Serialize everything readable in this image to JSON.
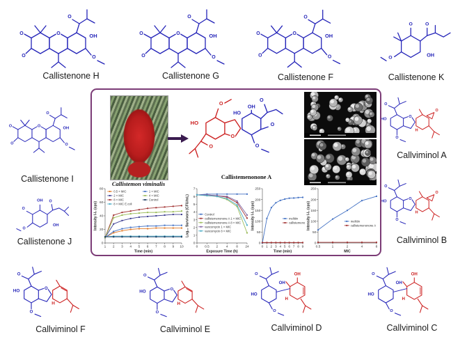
{
  "figure": {
    "box_border_color": "#7b3b76",
    "arrow_color": "#3a1b4f",
    "structure_colors": {
      "blue": "#2323b8",
      "red": "#cc1f1f"
    },
    "atom_labels": {
      "O": "O",
      "OH": "OH",
      "HO": "HO",
      "H": "H"
    },
    "compounds": [
      {
        "label": "Callistenone H",
        "type": "xanthene"
      },
      {
        "label": "Callistenone G",
        "type": "xanthene"
      },
      {
        "label": "Callistenone F",
        "type": "xanthene"
      },
      {
        "label": "Callistenone K",
        "type": "monoK"
      },
      {
        "label": "Callistenone I",
        "type": "xanthene"
      },
      {
        "label": "Callviminol A",
        "type": "benzofuranEpox"
      },
      {
        "label": "Callistenone J",
        "type": "monoJ"
      },
      {
        "label": "Callviminol B",
        "type": "benzofuranEpox"
      },
      {
        "label": "Callviminol F",
        "type": "benzofuranEne"
      },
      {
        "label": "Callviminol E",
        "type": "benzofuranEne"
      },
      {
        "label": "Callviminol D",
        "type": "biphenyl"
      },
      {
        "label": "Callviminol C",
        "type": "biphenyl"
      }
    ],
    "center": {
      "plant_label": "Callistemon viminalis",
      "product_label": "Callistemenonone A"
    }
  },
  "chart_data": [
    {
      "type": "line",
      "xlabel": "Time (min)",
      "ylabel": "Intensity I-I₀ (cps)",
      "x_ticks": [
        "1",
        "2",
        "3",
        "4",
        "5",
        "6",
        "7",
        "8",
        "9",
        "10"
      ],
      "yticks": [
        0,
        20,
        40,
        60,
        80
      ],
      "ylim": [
        0,
        80
      ],
      "legend": {
        "cols": 2,
        "x": 0.03,
        "y": 0.0,
        "rows": 4
      },
      "series": [
        {
          "name": "0.5 × MIC",
          "color": "#e07b2a",
          "values": [
            8,
            15,
            18,
            20,
            21,
            21,
            22,
            22,
            22,
            22
          ]
        },
        {
          "name": "2 × MIC",
          "color": "#3f3f91",
          "values": [
            8,
            28,
            33,
            36,
            38,
            39,
            40,
            41,
            42,
            42
          ]
        },
        {
          "name": "8 × MIC",
          "color": "#a33535",
          "values": [
            8,
            41,
            45,
            47,
            49,
            51,
            52,
            53,
            54,
            55
          ]
        },
        {
          "name": "8 × MIC E.coli",
          "color": "#4bacc6",
          "values": [
            9,
            10,
            10,
            10,
            10,
            10,
            10,
            10,
            10,
            10
          ]
        },
        {
          "name": "1 × MIC",
          "color": "#4472c4",
          "values": [
            8,
            17,
            21,
            23,
            24,
            25,
            25,
            26,
            26,
            26
          ]
        },
        {
          "name": "4 × MIC",
          "color": "#9bbb59",
          "values": [
            8,
            37,
            41,
            43,
            44,
            45,
            45,
            46,
            46,
            47
          ]
        },
        {
          "name": "Control",
          "color": "#17375e",
          "values": [
            9,
            9,
            9,
            9,
            9,
            9,
            9,
            9,
            9,
            9
          ]
        }
      ]
    },
    {
      "type": "line",
      "xlabel": "Exposure Time (h)",
      "ylabel": "Log₁₀ Survivors (CFU/mL)",
      "x_ticks": [
        "0",
        "0.5",
        "2",
        "4",
        "8",
        "24"
      ],
      "yticks": [
        0,
        1,
        2,
        3,
        4,
        5,
        6,
        7
      ],
      "ylim": [
        0,
        7
      ],
      "legend": {
        "cols": 1,
        "x": 0.03,
        "y": 0.42,
        "rows": 5
      },
      "series": [
        {
          "name": "Control",
          "color": "#4472c4",
          "values": [
            6.2,
            6.3,
            6.3,
            6.3,
            6.3,
            6.3
          ]
        },
        {
          "name": "callistemenonone A 1 × MIC",
          "color": "#a33535",
          "values": [
            6.2,
            6.2,
            6.1,
            5.9,
            5.2,
            3.2
          ]
        },
        {
          "name": "callistemenonone A 8 × MIC",
          "color": "#9bbb59",
          "values": [
            6.2,
            6.1,
            6.0,
            5.6,
            4.7,
            1.3
          ]
        },
        {
          "name": "vancomycin 1 × MIC",
          "color": "#8064a2",
          "values": [
            6.2,
            6.2,
            6.1,
            6.0,
            5.4,
            3.6
          ]
        },
        {
          "name": "vancomycin 8 × MIC",
          "color": "#4bacc6",
          "values": [
            6.2,
            6.1,
            6.0,
            5.7,
            4.9,
            2.3
          ]
        }
      ]
    },
    {
      "type": "line",
      "xlabel": "Time (min)",
      "ylabel": "Intensity I-I₀ (cps)",
      "x_ticks": [
        "0",
        "1",
        "2",
        "3",
        "4",
        "5",
        "6",
        "7",
        "8",
        "9"
      ],
      "yticks": [
        0,
        50,
        100,
        150,
        200,
        250
      ],
      "ylim": [
        0,
        250
      ],
      "legend": {
        "cols": 1,
        "x": 0.5,
        "y": 0.5,
        "rows": 2
      },
      "series": [
        {
          "name": "melittin",
          "color": "#4472c4",
          "values": [
            0,
            113,
            163,
            185,
            196,
            202,
            206,
            207,
            209,
            210
          ]
        },
        {
          "name": "callistemenonone A",
          "color": "#a33535",
          "values": [
            2,
            2,
            2,
            2,
            2,
            2,
            2,
            2,
            2,
            2
          ]
        }
      ]
    },
    {
      "type": "line",
      "xlabel": "MIC",
      "ylabel": "Intensity I-I₀ (cps)",
      "x_ticks": [
        "0.5",
        "1",
        "2",
        "4",
        "8"
      ],
      "yticks": [
        0,
        50,
        100,
        150,
        200,
        250
      ],
      "ylim": [
        0,
        250
      ],
      "legend": {
        "cols": 1,
        "x": 0.45,
        "y": 0.55,
        "rows": 2
      },
      "series": [
        {
          "name": "melittin",
          "color": "#4472c4",
          "values": [
            60,
            110,
            150,
            195,
            215
          ]
        },
        {
          "name": "callistemenonone A",
          "color": "#a33535",
          "values": [
            3,
            3,
            3,
            3,
            3
          ]
        }
      ]
    }
  ]
}
